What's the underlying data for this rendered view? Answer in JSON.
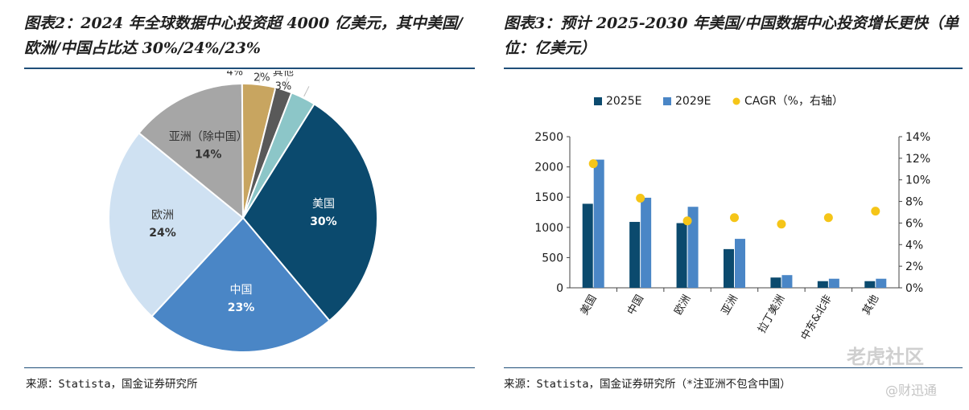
{
  "left": {
    "title": "图表2：2024 年全球数据中心投资超 4000 亿美元，其中美国/欧洲/中国占比达 30%/24%/23%",
    "source": "来源：Statista，国金证券研究所"
  },
  "right": {
    "title": "图表3：预计 2025-2030 年美国/中国数据中心投资增长更快（单位：亿美元）",
    "source": "来源：Statista，国金证券研究所（*注亚洲不包含中国）"
  },
  "watermark": {
    "brand": "老虎社区",
    "handle": "@财迅通"
  },
  "chart_data": [
    {
      "type": "pie",
      "slices": [
        {
          "label": "美国",
          "value": 30,
          "display": "30%",
          "color": "#0b4a6e"
        },
        {
          "label": "中国",
          "value": 23,
          "display": "23%",
          "color": "#4a86c6"
        },
        {
          "label": "欧洲",
          "value": 24,
          "display": "24%",
          "color": "#cfe1f2"
        },
        {
          "label": "亚洲（除中国）",
          "value": 14,
          "display": "14%",
          "color": "#a6a6a6"
        },
        {
          "label": "拉丁美洲",
          "value": 4,
          "display": "4%",
          "color": "#c8a560"
        },
        {
          "label": "中东&北非",
          "value": 2,
          "display": "2%",
          "color": "#595959"
        },
        {
          "label": "其他",
          "value": 3,
          "display": "3%",
          "color": "#8cc6c8"
        }
      ]
    },
    {
      "type": "bar",
      "categories": [
        "美国",
        "中国",
        "欧洲",
        "亚洲",
        "拉丁美洲",
        "中东&北非",
        "其他"
      ],
      "series": [
        {
          "name": "2025E",
          "type": "bar",
          "axis": "left",
          "color": "#0b4a6e",
          "values": [
            1390,
            1090,
            1070,
            640,
            170,
            110,
            110
          ]
        },
        {
          "name": "2029E",
          "type": "bar",
          "axis": "left",
          "color": "#4a86c6",
          "values": [
            2120,
            1490,
            1340,
            810,
            210,
            150,
            150
          ]
        },
        {
          "name": "CAGR（%，右轴）",
          "type": "scatter",
          "axis": "right",
          "color": "#f5c518",
          "values": [
            11.5,
            8.3,
            6.2,
            6.5,
            5.9,
            6.5,
            7.1
          ]
        }
      ],
      "yaxis_left": {
        "min": 0,
        "max": 2500,
        "ticks": [
          "0",
          "500",
          "1000",
          "1500",
          "2000",
          "2500"
        ]
      },
      "yaxis_right": {
        "min": 0,
        "max": 14,
        "ticks": [
          "0%",
          "2%",
          "4%",
          "6%",
          "8%",
          "10%",
          "12%",
          "14%"
        ]
      },
      "legend_position": "top"
    }
  ]
}
